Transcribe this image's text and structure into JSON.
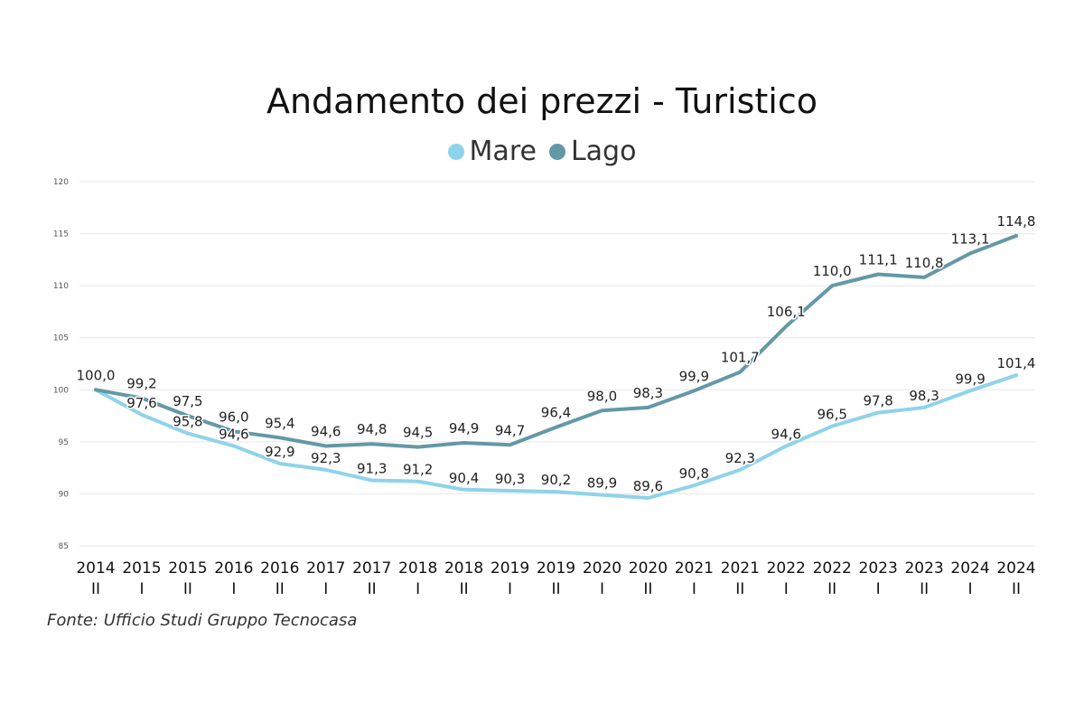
{
  "chart_data": {
    "type": "line",
    "title": "Andamento dei prezzi - Turistico",
    "x": [
      "2014 II",
      "2015 I",
      "2015 II",
      "2016 I",
      "2016 II",
      "2017 I",
      "2017 II",
      "2018 I",
      "2018 II",
      "2019 I",
      "2019 II",
      "2020 I",
      "2020 II",
      "2021 I",
      "2021 II",
      "2022 I",
      "2022 II",
      "2023 I",
      "2023 II",
      "2024 I",
      "2024 II"
    ],
    "x_years": [
      "2014",
      "2015",
      "2015",
      "2016",
      "2016",
      "2017",
      "2017",
      "2018",
      "2018",
      "2019",
      "2019",
      "2020",
      "2020",
      "2021",
      "2021",
      "2022",
      "2022",
      "2023",
      "2023",
      "2024",
      "2024"
    ],
    "x_halves": [
      "II",
      "I",
      "II",
      "I",
      "II",
      "I",
      "II",
      "I",
      "II",
      "I",
      "II",
      "I",
      "II",
      "I",
      "II",
      "I",
      "II",
      "I",
      "II",
      "I",
      "II"
    ],
    "series": [
      {
        "name": "Mare",
        "color": "#8fd3ea",
        "values": [
          100.0,
          97.6,
          95.8,
          94.6,
          92.9,
          92.3,
          91.3,
          91.2,
          90.4,
          90.3,
          90.2,
          89.9,
          89.6,
          90.8,
          92.3,
          94.6,
          96.5,
          97.8,
          98.3,
          99.9,
          101.4
        ],
        "labels": [
          "100,0",
          "97,6",
          "95,8",
          "94,6",
          "92,9",
          "92,3",
          "91,3",
          "91,2",
          "90,4",
          "90,3",
          "90,2",
          "89,9",
          "89,6",
          "90,8",
          "92,3",
          "94,6",
          "96,5",
          "97,8",
          "98,3",
          "99,9",
          "101,4"
        ]
      },
      {
        "name": "Lago",
        "color": "#6398a7",
        "values": [
          100.0,
          99.2,
          97.5,
          96.0,
          95.4,
          94.6,
          94.8,
          94.5,
          94.9,
          94.7,
          96.4,
          98.0,
          98.3,
          99.9,
          101.7,
          106.1,
          110.0,
          111.1,
          110.8,
          113.1,
          114.8
        ],
        "labels": [
          "100,0",
          "99,2",
          "97,5",
          "96,0",
          "95,4",
          "94,6",
          "94,8",
          "94,5",
          "94,9",
          "94,7",
          "96,4",
          "98,0",
          "98,3",
          "99,9",
          "101,7",
          "106,1",
          "110,0",
          "111,1",
          "110,8",
          "113,1",
          "114,8"
        ]
      }
    ],
    "ylim": [
      85,
      120
    ],
    "yticks": [
      "85",
      "90",
      "95",
      "100",
      "105",
      "110",
      "115",
      "120"
    ],
    "grid": true,
    "legend_position": "top-center"
  },
  "source": "Fonte: Ufficio Studi Gruppo Tecnocasa"
}
